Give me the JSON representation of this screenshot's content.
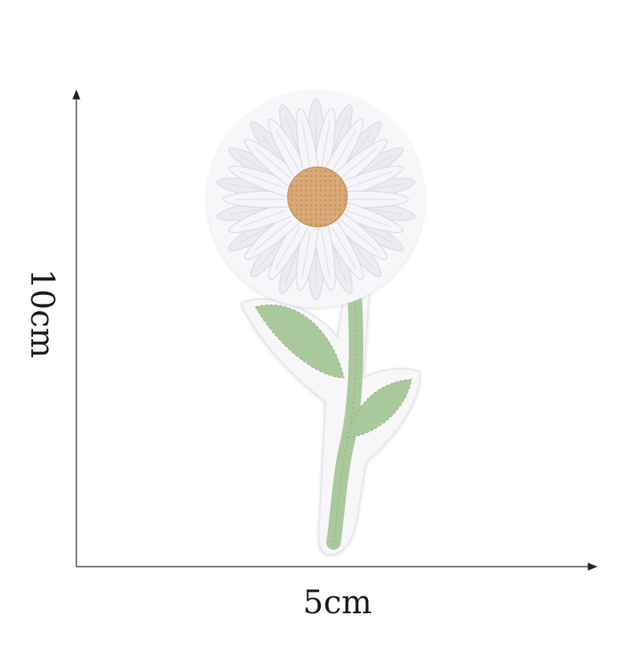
{
  "dimensions": {
    "width_label": "5cm",
    "height_label": "10cm"
  },
  "product": {
    "subject": "daisy-embroidered-patch",
    "petal_color": "#f3f1f6",
    "center_color": "#d9a978",
    "stem_color": "#a9c99c",
    "backing_color": "#f7f6f9"
  },
  "arrow_color": "#222222"
}
